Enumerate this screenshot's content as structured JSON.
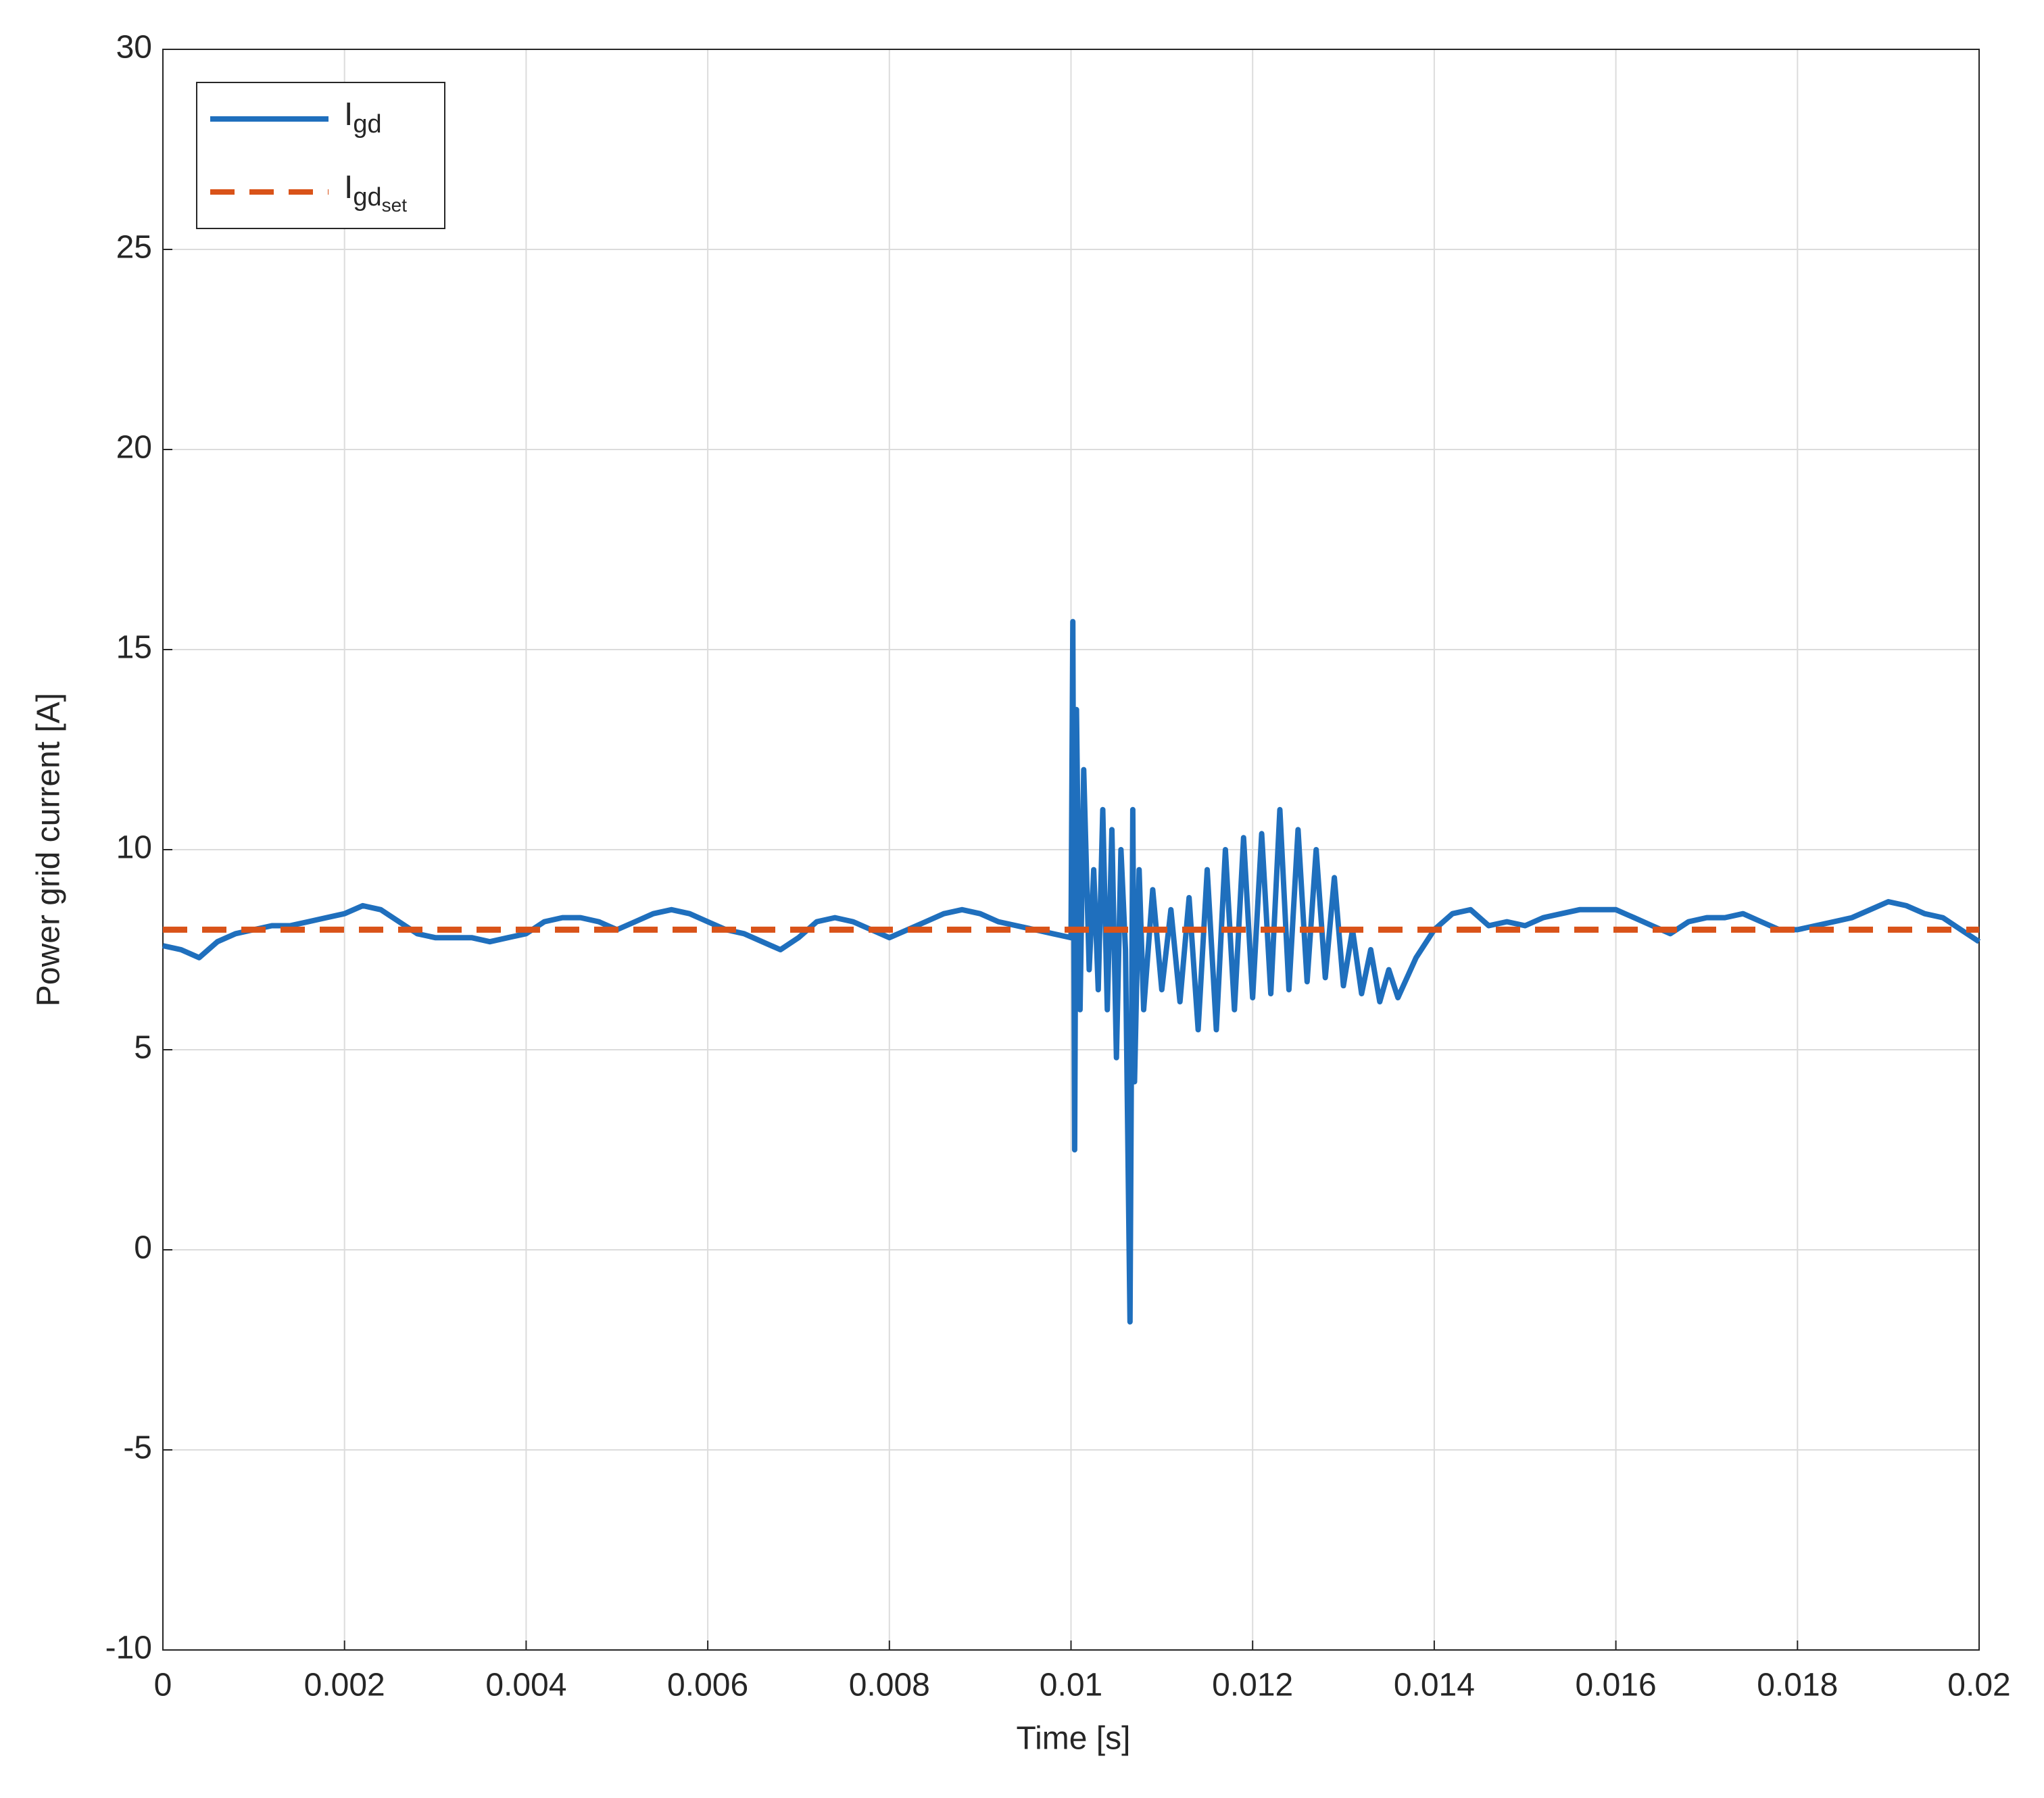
{
  "chart_data": {
    "type": "line",
    "x_label": "Time [s]",
    "y_label": "Power grid current [A]",
    "xlim": [
      0,
      0.02
    ],
    "ylim": [
      -10,
      30
    ],
    "xticks": [
      0,
      0.002,
      0.004,
      0.006,
      0.008,
      0.01,
      0.012,
      0.014,
      0.016,
      0.018,
      0.02
    ],
    "yticks": [
      -10,
      -5,
      0,
      5,
      10,
      15,
      20,
      25,
      30
    ],
    "grid": true,
    "legend": "upper left",
    "x": [
      0,
      0.0002,
      0.0004,
      0.0006,
      0.0008,
      0.001,
      0.0012,
      0.0014,
      0.0016,
      0.0018,
      0.002,
      0.0022,
      0.0024,
      0.0026,
      0.0028,
      0.003,
      0.0032,
      0.0034,
      0.0036,
      0.0038,
      0.004,
      0.0042,
      0.0044,
      0.0046,
      0.0048,
      0.005,
      0.0052,
      0.0054,
      0.0056,
      0.0058,
      0.006,
      0.0062,
      0.0064,
      0.0066,
      0.0068,
      0.007,
      0.0072,
      0.0074,
      0.0076,
      0.0078,
      0.008,
      0.0082,
      0.0084,
      0.0086,
      0.0088,
      0.009,
      0.0092,
      0.0094,
      0.0096,
      0.0098,
      0.01,
      0.01002,
      0.01004,
      0.01006,
      0.0101,
      0.01014,
      0.0102,
      0.01025,
      0.0103,
      0.01035,
      0.0104,
      0.01045,
      0.0105,
      0.01055,
      0.0106,
      0.01065,
      0.01068,
      0.0107,
      0.01075,
      0.0108,
      0.0109,
      0.011,
      0.0111,
      0.0112,
      0.0113,
      0.0114,
      0.0115,
      0.0116,
      0.0117,
      0.0118,
      0.0119,
      0.012,
      0.0121,
      0.0122,
      0.0123,
      0.0124,
      0.0125,
      0.0126,
      0.0127,
      0.0128,
      0.0129,
      0.013,
      0.0131,
      0.0132,
      0.0133,
      0.0134,
      0.0135,
      0.0136,
      0.0138,
      0.014,
      0.0142,
      0.0144,
      0.0146,
      0.0148,
      0.015,
      0.0152,
      0.0154,
      0.0156,
      0.0158,
      0.016,
      0.0162,
      0.0164,
      0.0166,
      0.0168,
      0.017,
      0.0172,
      0.0174,
      0.0176,
      0.0178,
      0.018,
      0.0182,
      0.0184,
      0.0186,
      0.0188,
      0.019,
      0.0192,
      0.0194,
      0.0196,
      0.0198,
      0.02
    ],
    "series": [
      {
        "name": "Igd",
        "color": "#1f6fbd",
        "values": [
          7.6,
          7.5,
          7.3,
          7.7,
          7.9,
          8.0,
          8.1,
          8.1,
          8.2,
          8.3,
          8.4,
          8.6,
          8.5,
          8.2,
          7.9,
          7.8,
          7.8,
          7.8,
          7.7,
          7.8,
          7.9,
          8.2,
          8.3,
          8.3,
          8.2,
          8.0,
          8.2,
          8.4,
          8.5,
          8.4,
          8.2,
          8.0,
          7.9,
          7.7,
          7.5,
          7.8,
          8.2,
          8.3,
          8.2,
          8.0,
          7.8,
          8.0,
          8.2,
          8.4,
          8.5,
          8.4,
          8.2,
          8.1,
          8.0,
          7.9,
          7.8,
          15.7,
          2.5,
          13.5,
          6.0,
          12.0,
          7.0,
          9.5,
          6.5,
          11.0,
          6.0,
          10.5,
          4.8,
          10.0,
          7.5,
          -1.8,
          11.0,
          4.2,
          9.5,
          6.0,
          9.0,
          6.5,
          8.5,
          6.2,
          8.8,
          5.5,
          9.5,
          5.5,
          10.0,
          6.0,
          10.3,
          6.3,
          10.4,
          6.4,
          11.0,
          6.5,
          10.5,
          6.7,
          10.0,
          6.8,
          9.3,
          6.6,
          8.0,
          6.4,
          7.5,
          6.2,
          7.0,
          6.3,
          7.3,
          8.0,
          8.4,
          8.5,
          8.1,
          8.2,
          8.1,
          8.3,
          8.4,
          8.5,
          8.5,
          8.5,
          8.3,
          8.1,
          7.9,
          8.2,
          8.3,
          8.3,
          8.4,
          8.2,
          8.0,
          8.0,
          8.1,
          8.2,
          8.3,
          8.5,
          8.7,
          8.6,
          8.4,
          8.3,
          8.0,
          7.7
        ]
      },
      {
        "name": "Igdset",
        "color": "#d95319",
        "dashed": true,
        "x": [
          0,
          0.02
        ],
        "values": [
          8,
          8
        ]
      }
    ]
  }
}
